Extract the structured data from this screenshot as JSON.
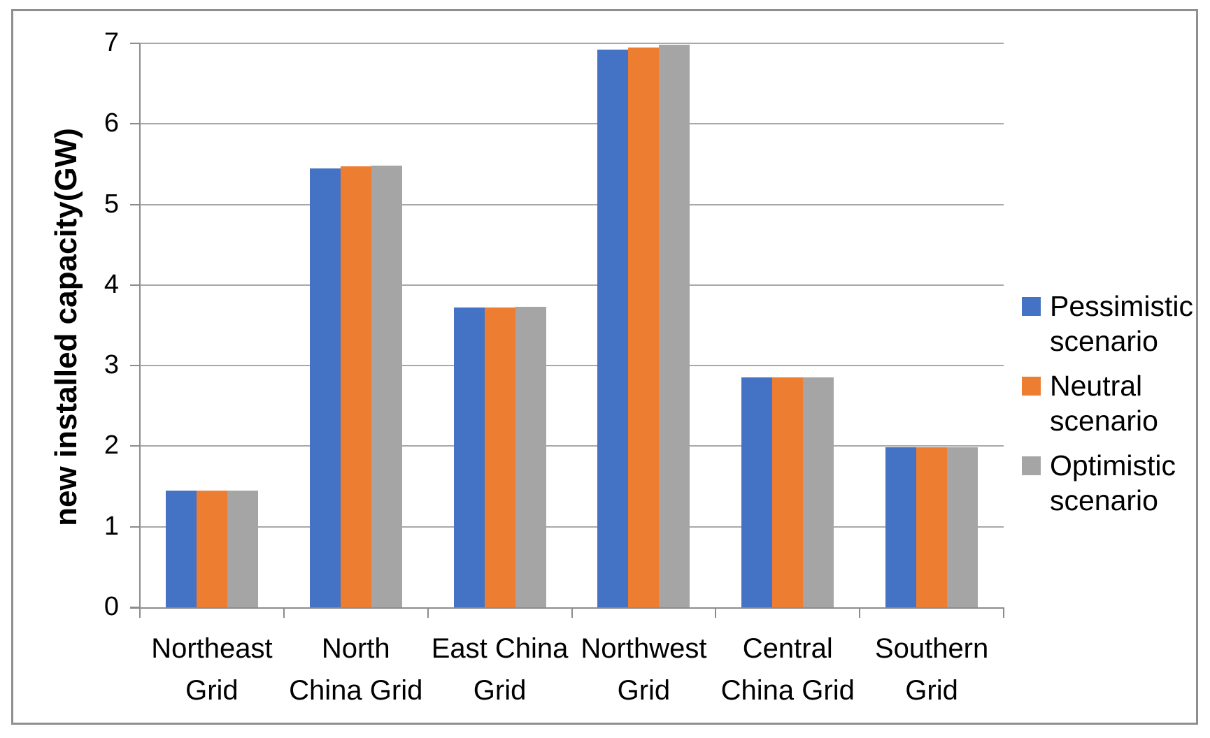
{
  "figure": {
    "background": "#ffffff",
    "border_color": "#8f8f8f"
  },
  "chart_data": {
    "type": "bar",
    "title": "",
    "ylabel": "new installed capacity(GW)",
    "xlabel": "",
    "ylim": [
      0,
      7
    ],
    "yticks": [
      0,
      1,
      2,
      3,
      4,
      5,
      6,
      7
    ],
    "grid": true,
    "legend_position": "right",
    "categories": [
      "Northeast Grid",
      "North China Grid",
      "East China Grid",
      "Northwest Grid",
      "Central China Grid",
      "Southern Grid"
    ],
    "categories_lines": [
      [
        "Northeast",
        "Grid"
      ],
      [
        "North",
        "China Grid"
      ],
      [
        "East China",
        "Grid"
      ],
      [
        "Northwest",
        "Grid"
      ],
      [
        "Central",
        "China Grid"
      ],
      [
        "Southern",
        "Grid"
      ]
    ],
    "series": [
      {
        "name": "Pessimistic scenario",
        "name_lines": [
          "Pessimistic",
          "scenario"
        ],
        "color": "#4472C4",
        "values": [
          1.45,
          5.45,
          3.72,
          6.92,
          2.85,
          1.99
        ]
      },
      {
        "name": "Neutral scenario",
        "name_lines": [
          "Neutral",
          "scenario"
        ],
        "color": "#ED7D31",
        "values": [
          1.45,
          5.47,
          3.72,
          6.95,
          2.85,
          1.99
        ]
      },
      {
        "name": "Optimistic scenario",
        "name_lines": [
          "Optimistic",
          "scenario"
        ],
        "color": "#A5A5A5",
        "values": [
          1.45,
          5.48,
          3.73,
          6.98,
          2.85,
          1.99
        ]
      }
    ]
  }
}
